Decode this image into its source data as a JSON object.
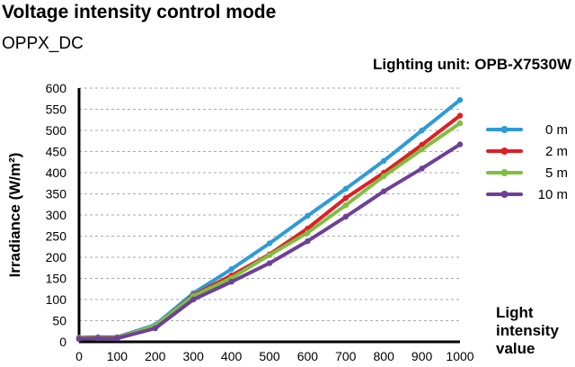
{
  "header": {
    "title": "Voltage intensity control mode",
    "subtitle": "OPPX_DC",
    "unit_label": "Lighting unit: OPB-X7530W"
  },
  "chart_data": {
    "type": "line",
    "x": [
      0,
      50,
      100,
      200,
      300,
      400,
      500,
      600,
      700,
      800,
      900,
      1000
    ],
    "xlim": [
      0,
      1000
    ],
    "ylim": [
      0,
      600
    ],
    "xticks": [
      0,
      100,
      200,
      300,
      400,
      500,
      600,
      700,
      800,
      900,
      1000
    ],
    "yticks": [
      0,
      50,
      100,
      150,
      200,
      250,
      300,
      350,
      400,
      450,
      500,
      550,
      600
    ],
    "xlabel": [
      "Light",
      "intensity",
      "value"
    ],
    "ylabel": "Irradiance (W/m²)",
    "grid": "horizontal dashed",
    "legend_position": "right",
    "series": [
      {
        "name": "0 m",
        "color": "#2e9bd6",
        "values": [
          10,
          11,
          11,
          40,
          115,
          172,
          233,
          298,
          362,
          428,
          500,
          572
        ]
      },
      {
        "name": "2 m",
        "color": "#dd1f26",
        "values": [
          9,
          10,
          10,
          37,
          110,
          157,
          207,
          268,
          340,
          400,
          466,
          535
        ]
      },
      {
        "name": "5 m",
        "color": "#7fbf3f",
        "values": [
          8,
          9,
          9,
          38,
          108,
          151,
          205,
          258,
          323,
          392,
          455,
          517
        ]
      },
      {
        "name": "10 m",
        "color": "#6e3f98",
        "values": [
          7,
          8,
          8,
          32,
          100,
          142,
          186,
          238,
          296,
          356,
          410,
          467
        ]
      }
    ]
  }
}
